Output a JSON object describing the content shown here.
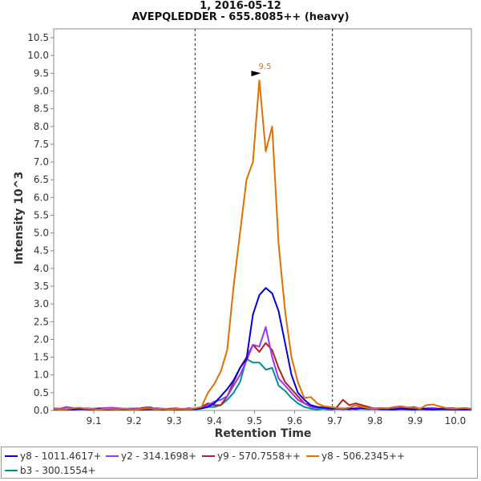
{
  "chart_data": {
    "type": "line",
    "title": "1, 2016-05-12",
    "subtitle": "AVEPQLEDDER - 655.8085++ (heavy)",
    "xlabel": "Retention Time",
    "ylabel": "Intensity 10^3",
    "xlim": [
      9.0,
      10.04
    ],
    "ylim": [
      0.0,
      10.75
    ],
    "xticks": [
      "9.1",
      "9.2",
      "9.3",
      "9.4",
      "9.5",
      "9.6",
      "9.7",
      "9.8",
      "9.9",
      "10.0"
    ],
    "yticks": [
      "0.0",
      "0.5",
      "1.0",
      "1.5",
      "2.0",
      "2.5",
      "3.0",
      "3.5",
      "4.0",
      "4.5",
      "5.0",
      "5.5",
      "6.0",
      "6.5",
      "7.0",
      "7.5",
      "8.0",
      "8.5",
      "9.0",
      "9.5",
      "10.0",
      "10.5"
    ],
    "integration_bounds": [
      9.352,
      9.694
    ],
    "peak_annotation": {
      "label": "9.5",
      "x": 9.52,
      "y": 9.3
    },
    "x": [
      9.0,
      9.016,
      9.032,
      9.048,
      9.064,
      9.08,
      9.096,
      9.112,
      9.128,
      9.144,
      9.16,
      9.176,
      9.192,
      9.208,
      9.224,
      9.24,
      9.256,
      9.272,
      9.288,
      9.304,
      9.32,
      9.336,
      9.352,
      9.368,
      9.384,
      9.4,
      9.416,
      9.432,
      9.448,
      9.464,
      9.48,
      9.496,
      9.512,
      9.528,
      9.544,
      9.56,
      9.576,
      9.592,
      9.608,
      9.624,
      9.64,
      9.656,
      9.672,
      9.688,
      9.704,
      9.72,
      9.736,
      9.752,
      9.768,
      9.784,
      9.8,
      9.816,
      9.832,
      9.848,
      9.864,
      9.88,
      9.896,
      9.912,
      9.928,
      9.944,
      9.96,
      9.976,
      9.992,
      10.008,
      10.024,
      10.04
    ],
    "series": [
      {
        "name": "y8 - 1011.4617+",
        "color": "#0000e0",
        "values": [
          0.05,
          0.03,
          0.04,
          0.03,
          0.05,
          0.04,
          0.03,
          0.05,
          0.04,
          0.03,
          0.03,
          0.04,
          0.05,
          0.03,
          0.03,
          0.04,
          0.05,
          0.04,
          0.03,
          0.03,
          0.04,
          0.05,
          0.04,
          0.06,
          0.1,
          0.2,
          0.4,
          0.6,
          0.85,
          1.2,
          1.45,
          2.7,
          3.25,
          3.45,
          3.3,
          2.8,
          1.9,
          1.0,
          0.5,
          0.3,
          0.15,
          0.1,
          0.08,
          0.06,
          0.05,
          0.04,
          0.05,
          0.04,
          0.06,
          0.05,
          0.04,
          0.05,
          0.04,
          0.03,
          0.05,
          0.04,
          0.03,
          0.05,
          0.04,
          0.03,
          0.04,
          0.05,
          0.03,
          0.04,
          0.03,
          0.04
        ]
      },
      {
        "name": "y2 - 314.1698+",
        "color": "#9933ff",
        "values": [
          0.06,
          0.05,
          0.1,
          0.07,
          0.05,
          0.06,
          0.05,
          0.06,
          0.07,
          0.08,
          0.06,
          0.05,
          0.05,
          0.06,
          0.04,
          0.05,
          0.06,
          0.05,
          0.04,
          0.05,
          0.04,
          0.06,
          0.05,
          0.08,
          0.15,
          0.25,
          0.3,
          0.4,
          0.7,
          1.0,
          1.4,
          1.85,
          1.8,
          2.35,
          1.5,
          0.9,
          0.7,
          0.5,
          0.3,
          0.2,
          0.1,
          0.08,
          0.06,
          0.05,
          0.06,
          0.04,
          0.05,
          0.07,
          0.1,
          0.08,
          0.06,
          0.07,
          0.05,
          0.06,
          0.08,
          0.07,
          0.06,
          0.05,
          0.06,
          0.07,
          0.05,
          0.06,
          0.07,
          0.05,
          0.06,
          0.05
        ]
      },
      {
        "name": "y9 - 570.7558++",
        "color": "#b22222",
        "values": [
          0.02,
          0.03,
          0.02,
          0.04,
          0.05,
          0.03,
          0.02,
          0.05,
          0.04,
          0.03,
          0.02,
          0.04,
          0.03,
          0.05,
          0.08,
          0.09,
          0.04,
          0.03,
          0.05,
          0.06,
          0.04,
          0.05,
          0.05,
          0.1,
          0.2,
          0.15,
          0.15,
          0.4,
          0.8,
          1.2,
          1.5,
          1.85,
          1.65,
          1.9,
          1.7,
          1.2,
          0.8,
          0.6,
          0.4,
          0.2,
          0.15,
          0.1,
          0.08,
          0.05,
          0.08,
          0.3,
          0.15,
          0.2,
          0.15,
          0.1,
          0.05,
          0.04,
          0.06,
          0.08,
          0.1,
          0.07,
          0.1,
          0.05,
          0.03,
          0.04,
          0.05,
          0.04,
          0.05,
          0.04,
          0.05,
          0.04
        ]
      },
      {
        "name": "y8 - 506.2345++",
        "color": "#e07000",
        "values": [
          0.05,
          0.03,
          0.04,
          0.06,
          0.08,
          0.05,
          0.04,
          0.03,
          0.05,
          0.04,
          0.03,
          0.05,
          0.04,
          0.03,
          0.05,
          0.06,
          0.04,
          0.05,
          0.03,
          0.04,
          0.05,
          0.04,
          0.06,
          0.1,
          0.5,
          0.75,
          1.1,
          1.7,
          3.5,
          5.0,
          6.5,
          7.0,
          9.3,
          7.3,
          8.0,
          4.7,
          2.8,
          1.5,
          0.8,
          0.35,
          0.38,
          0.2,
          0.12,
          0.1,
          0.07,
          0.05,
          0.08,
          0.15,
          0.1,
          0.06,
          0.05,
          0.07,
          0.06,
          0.1,
          0.12,
          0.09,
          0.08,
          0.05,
          0.15,
          0.17,
          0.12,
          0.07,
          0.05,
          0.06,
          0.07,
          0.05
        ]
      },
      {
        "name": "b3 - 300.1554+",
        "color": "#009090",
        "values": [
          0.03,
          0.02,
          0.03,
          0.02,
          0.03,
          0.04,
          0.03,
          0.02,
          0.03,
          0.02,
          0.03,
          0.02,
          0.03,
          0.02,
          0.03,
          0.02,
          0.03,
          0.02,
          0.03,
          0.02,
          0.03,
          0.02,
          0.03,
          0.05,
          0.1,
          0.1,
          0.15,
          0.3,
          0.5,
          0.8,
          1.45,
          1.35,
          1.35,
          1.15,
          1.2,
          0.7,
          0.55,
          0.35,
          0.2,
          0.1,
          0.05,
          0.03,
          0.05,
          0.02,
          0.05,
          0.06,
          0.03,
          0.06,
          0.05,
          0.04,
          0.05,
          0.03,
          0.02,
          0.03,
          0.04,
          0.03,
          0.02,
          0.03,
          0.04,
          0.02,
          0.03,
          0.02,
          0.03,
          0.02,
          0.03,
          0.02
        ]
      }
    ]
  }
}
